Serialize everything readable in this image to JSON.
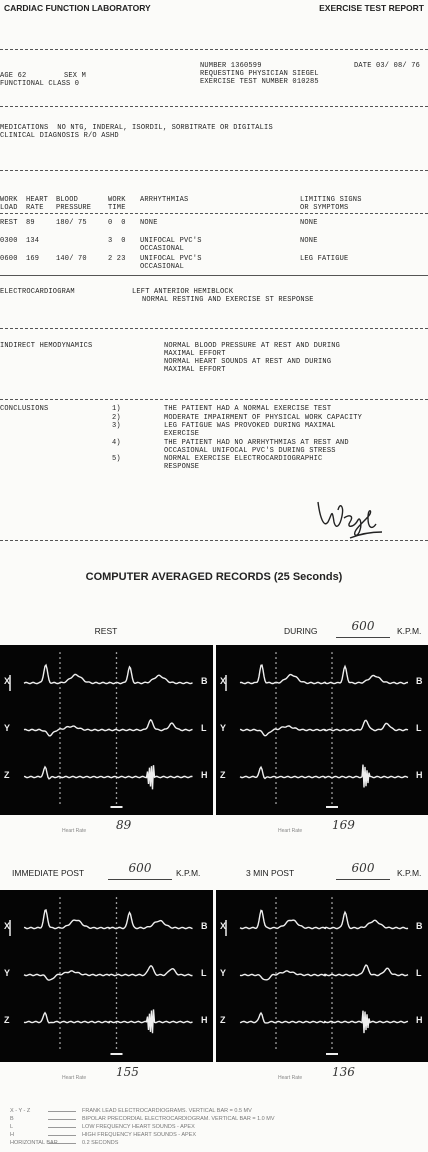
{
  "header": {
    "left": "CARDIAC FUNCTION LABORATORY",
    "right": "EXERCISE TEST REPORT"
  },
  "patient": {
    "age": "AGE 62",
    "sex": "SEX M",
    "functional_class": "FUNCTIONAL CLASS 0",
    "number": "NUMBER 1360599",
    "date": "DATE 03/ 08/ 76",
    "physician": "REQUESTING PHYSICIAN SIEGEL",
    "test_number": "EXERCISE TEST NUMBER 010285"
  },
  "history": {
    "medications": "MEDICATIONS  NO NTG, INDERAL, ISORDIL, SORBITRATE OR DIGITALIS",
    "diagnosis": "CLINICAL DIAGNOSIS R/O ASHD"
  },
  "table": {
    "headers": [
      [
        "WORK",
        "LOAD"
      ],
      [
        "HEART",
        "RATE"
      ],
      [
        "BLOOD",
        "PRESSURE"
      ],
      [
        "WORK",
        "TIME"
      ],
      [
        "ARRHYTHMIAS"
      ],
      [
        "LIMITING SIGNS",
        "OR SYMPTOMS"
      ]
    ],
    "rows": [
      [
        "REST",
        "89",
        "180/ 75",
        "0  0",
        [
          "NONE"
        ],
        [
          "NONE"
        ]
      ],
      [
        "0300",
        "134",
        null,
        "3  0",
        [
          "UNIFOCAL PVC'S",
          "OCCASIONAL"
        ],
        [
          "NONE"
        ]
      ],
      [
        "0600",
        "169",
        "140/ 70",
        "2 23",
        [
          "UNIFOCAL PVC'S",
          "OCCASIONAL"
        ],
        [
          "LEG FATIGUE"
        ]
      ]
    ]
  },
  "ecg": {
    "label": "ELECTROCARDIOGRAM",
    "lines": [
      "LEFT ANTERIOR HEMIBLOCK",
      "NORMAL RESTING AND EXERCISE ST RESPONSE"
    ]
  },
  "hemodynamics": {
    "label": "INDIRECT HEMODYNAMICS",
    "lines": [
      "NORMAL BLOOD PRESSURE AT REST AND DURING",
      "MAXIMAL EFFORT",
      "NORMAL HEART SOUNDS AT REST AND DURING",
      "MAXIMAL EFFORT"
    ]
  },
  "conclusions": {
    "label": "CONCLUSIONS",
    "items": [
      {
        "number": "1)",
        "lines": [
          "THE PATIENT HAD A NORMAL EXERCISE TEST"
        ]
      },
      {
        "number": "2)",
        "lines": [
          "MODERATE IMPAIRMENT OF PHYSICAL WORK CAPACITY"
        ]
      },
      {
        "number": "3)",
        "lines": [
          "LEG FATIGUE WAS PROVOKED DURING MAXIMAL",
          "EXERCISE"
        ]
      },
      {
        "number": "4)",
        "lines": [
          "THE PATIENT HAD NO ARRHYTHMIAS AT REST AND",
          "OCCASIONAL UNIFOCAL PVC'S DURING STRESS"
        ]
      },
      {
        "number": "5)",
        "lines": [
          "NORMAL EXERCISE ELECTROCARDIOGRAPHIC",
          "RESPONSE"
        ]
      }
    ]
  },
  "records": {
    "title": "COMPUTER AVERAGED RECORDS (25 Seconds)",
    "leads_left": [
      "X",
      "Y",
      "Z"
    ],
    "leads_right": [
      "B",
      "L",
      "H"
    ],
    "heart_rate_label": "Heart Rate",
    "panels": [
      {
        "label": "REST",
        "heart_rate": "89"
      },
      {
        "label": "DURING",
        "load": "600",
        "unit": "K.P.M.",
        "heart_rate": "169"
      },
      {
        "label": "IMMEDIATE POST",
        "load": "600",
        "unit": "K.P.M.",
        "heart_rate": "155"
      },
      {
        "label": "3 MIN POST",
        "load": "600",
        "unit": "K.P.M.",
        "heart_rate": "136"
      }
    ]
  },
  "legend": [
    {
      "key": "X - Y - Z",
      "text": "FRANK LEAD ELECTROCARDIOGRAMS. VERTICAL BAR = 0.5 MV"
    },
    {
      "key": "B",
      "text": "BIPOLAR PRECORDIAL ELECTROCARDIOGRAM. VERTICAL BAR = 1.0 MV"
    },
    {
      "key": "L",
      "text": "LOW FREQUENCY HEART SOUNDS - APEX"
    },
    {
      "key": "H",
      "text": "HIGH FREQUENCY HEART SOUNDS - APEX"
    },
    {
      "key": "HORIZONTAL BAR",
      "text": "0.2 SECONDS"
    }
  ]
}
